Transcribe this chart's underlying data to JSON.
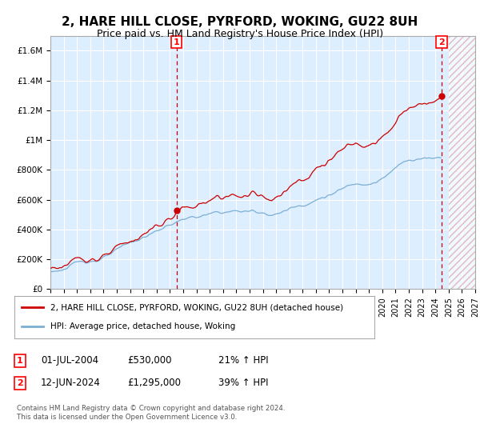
{
  "title": "2, HARE HILL CLOSE, PYRFORD, WOKING, GU22 8UH",
  "subtitle": "Price paid vs. HM Land Registry's House Price Index (HPI)",
  "title_fontsize": 11,
  "subtitle_fontsize": 9,
  "background_color": "#ffffff",
  "plot_bg_color": "#ddeeff",
  "grid_color": "#ffffff",
  "legend_entry1": "2, HARE HILL CLOSE, PYRFORD, WOKING, GU22 8UH (detached house)",
  "legend_entry2": "HPI: Average price, detached house, Woking",
  "line1_color": "#cc0000",
  "line2_color": "#7bafd4",
  "marker1_date": "01-JUL-2004",
  "marker1_price": "£530,000",
  "marker1_pct": "21% ↑ HPI",
  "marker1_x": 2004.5,
  "marker1_y": 530000,
  "marker2_date": "12-JUN-2024",
  "marker2_price": "£1,295,000",
  "marker2_pct": "39% ↑ HPI",
  "marker2_x": 2024.46,
  "marker2_y": 1295000,
  "xmin": 1995,
  "xmax": 2027,
  "ymin": 0,
  "ymax": 1700000,
  "yticks": [
    0,
    200000,
    400000,
    600000,
    800000,
    1000000,
    1200000,
    1400000,
    1600000
  ],
  "ytick_labels": [
    "£0",
    "£200K",
    "£400K",
    "£600K",
    "£800K",
    "£1M",
    "£1.2M",
    "£1.4M",
    "£1.6M"
  ],
  "footnote1": "Contains HM Land Registry data © Crown copyright and database right 2024.",
  "footnote2": "This data is licensed under the Open Government Licence v3.0.",
  "hatch_color": "#cc0000",
  "vline_color": "#cc0000",
  "dot_color": "#cc0000",
  "hatch_start": 2025.0,
  "hatch_end": 2027.0
}
